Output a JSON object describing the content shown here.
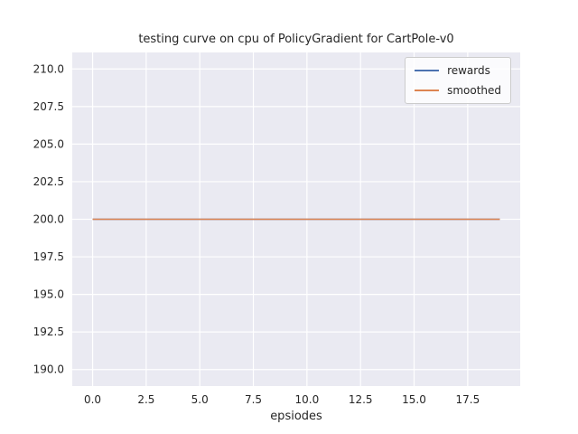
{
  "chart_data": {
    "type": "line",
    "title": "testing curve on cpu of PolicyGradient for CartPole-v0",
    "xlabel": "epsiodes",
    "ylabel": "",
    "grid": true,
    "legend_position": "upper right",
    "xlim": [
      -0.95,
      19.95
    ],
    "ylim": [
      188.9,
      211.1
    ],
    "xticks": {
      "values": [
        0,
        2.5,
        5,
        7.5,
        10,
        12.5,
        15,
        17.5
      ],
      "labels": [
        "0.0",
        "2.5",
        "5.0",
        "7.5",
        "10.0",
        "12.5",
        "15.0",
        "17.5"
      ]
    },
    "yticks": {
      "values": [
        190,
        192.5,
        195,
        197.5,
        200,
        202.5,
        205,
        207.5,
        210
      ],
      "labels": [
        "190.0",
        "192.5",
        "195.0",
        "197.5",
        "200.0",
        "202.5",
        "205.0",
        "207.5",
        "210.0"
      ]
    },
    "x": [
      0,
      1,
      2,
      3,
      4,
      5,
      6,
      7,
      8,
      9,
      10,
      11,
      12,
      13,
      14,
      15,
      16,
      17,
      18,
      19
    ],
    "series": [
      {
        "name": "rewards",
        "color": "#4c72b0",
        "values": [
          200,
          200,
          200,
          200,
          200,
          200,
          200,
          200,
          200,
          200,
          200,
          200,
          200,
          200,
          200,
          200,
          200,
          200,
          200,
          200
        ]
      },
      {
        "name": "smoothed",
        "color": "#dd8452",
        "values": [
          200,
          200,
          200,
          200,
          200,
          200,
          200,
          200,
          200,
          200,
          200,
          200,
          200,
          200,
          200,
          200,
          200,
          200,
          200,
          200
        ]
      }
    ],
    "colors": {
      "figure_background": "#ffffff",
      "axes_background": "#eaeaf2",
      "grid": "#ffffff",
      "text": "#262626"
    }
  }
}
